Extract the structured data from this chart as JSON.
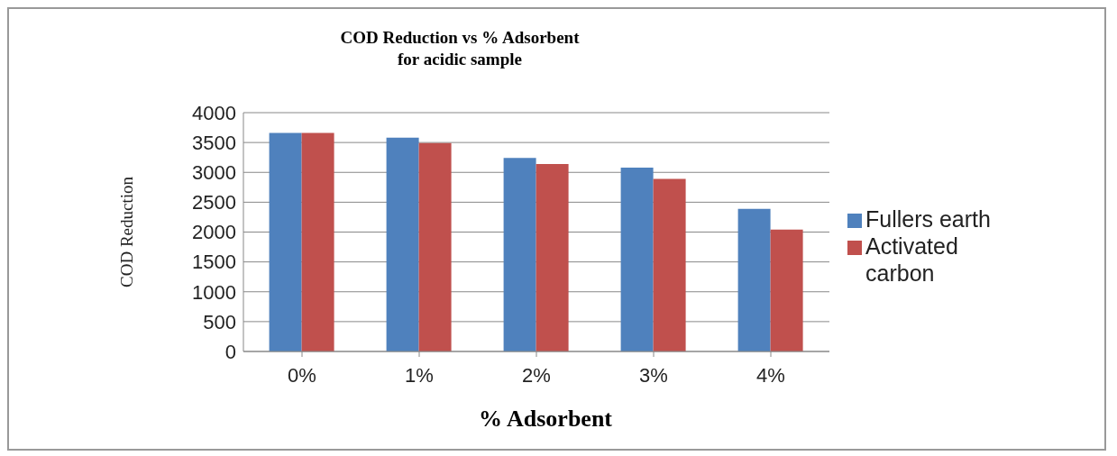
{
  "chart_data": {
    "type": "bar",
    "title": "COD Reduction vs % Adsorbent\nfor acidic sample",
    "xlabel": "% Adsorbent",
    "ylabel": "COD Reduction",
    "categories": [
      "0%",
      "1%",
      "2%",
      "3%",
      "4%"
    ],
    "series": [
      {
        "name": "Fullers earth",
        "color": "#4f81bd",
        "values": [
          3660,
          3580,
          3240,
          3080,
          2390
        ]
      },
      {
        "name": "Activated carbon",
        "color": "#c0504d",
        "values": [
          3660,
          3490,
          3140,
          2890,
          2040
        ]
      }
    ],
    "ylim": [
      0,
      4000
    ],
    "yticks": [
      0,
      500,
      1000,
      1500,
      2000,
      2500,
      3000,
      3500,
      4000
    ],
    "grid": "y",
    "legend": "right"
  }
}
